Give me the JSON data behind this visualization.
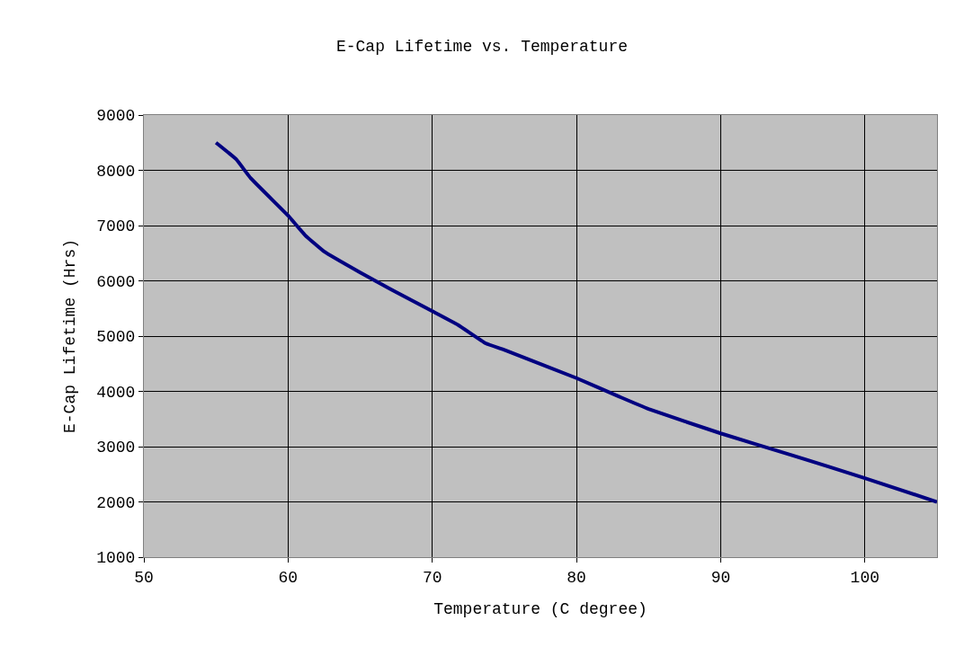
{
  "chart_data": {
    "type": "line",
    "title": "E-Cap Lifetime vs. Temperature",
    "xlabel": "Temperature (C degree)",
    "ylabel": "E-Cap Lifetime (Hrs)",
    "x": [
      55,
      56.4,
      57.4,
      60,
      61.2,
      62.5,
      65,
      67.1,
      70,
      71.8,
      73.7,
      75,
      80,
      83,
      85,
      90,
      95,
      100,
      105
    ],
    "series": [
      {
        "color": "#000080",
        "values": [
          8500,
          8200,
          7860,
          7180,
          6820,
          6530,
          6150,
          5850,
          5450,
          5200,
          4870,
          4750,
          4240,
          3900,
          3680,
          3240,
          2840,
          2430,
          2000
        ]
      }
    ],
    "xlim": [
      50,
      105
    ],
    "xticks": [
      50,
      60,
      70,
      80,
      90,
      100
    ],
    "ylim": [
      1000,
      9000
    ],
    "yticks": [
      1000,
      2000,
      3000,
      4000,
      5000,
      6000,
      7000,
      8000,
      9000
    ],
    "grid": true,
    "marker": "none",
    "line_style": "solid"
  }
}
